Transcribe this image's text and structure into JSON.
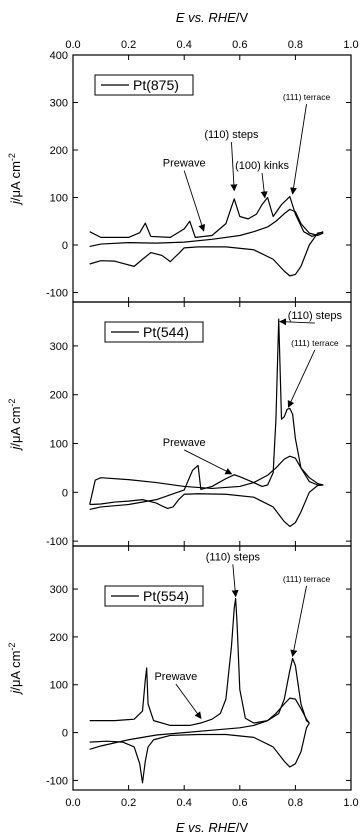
{
  "chart_data": {
    "type": "line",
    "x_axis": {
      "label_parts": [
        "E vs. RHE",
        "/V"
      ],
      "ticks": [
        "0.0",
        "0.2",
        "0.4",
        "0.6",
        "0.8",
        "1.0"
      ],
      "xlim": [
        0.0,
        1.0
      ],
      "top_and_bottom": true
    },
    "y_axis_label": {
      "main": "j/μA cm",
      "sup": "-2"
    },
    "panels": [
      {
        "legend": "Pt(875)",
        "ylim": [
          -120,
          400
        ],
        "yticks": [
          "400",
          "300",
          "200",
          "100",
          "0",
          "-100"
        ],
        "annotations": [
          {
            "text": "Prewave",
            "size": "normal",
            "text_x": 0.4,
            "text_y": 165,
            "arrow_to": [
              0.47,
              30
            ]
          },
          {
            "text": "(110) steps",
            "size": "normal",
            "text_x": 0.57,
            "text_y": 225,
            "arrow_to": [
              0.58,
              115
            ]
          },
          {
            "text": "(100) kinks",
            "size": "normal",
            "text_x": 0.68,
            "text_y": 160,
            "arrow_to": [
              0.69,
              100
            ]
          },
          {
            "text": "(111) terrace",
            "size": "small",
            "text_x": 0.84,
            "text_y": 305,
            "arrow_to": [
              0.79,
              108
            ]
          }
        ],
        "series": [
          {
            "x": [
              0.06,
              0.1,
              0.2,
              0.24,
              0.26,
              0.28,
              0.35,
              0.4,
              0.42,
              0.44,
              0.5,
              0.55,
              0.57,
              0.58,
              0.6,
              0.63,
              0.66,
              0.68,
              0.7,
              0.72,
              0.75,
              0.78,
              0.8,
              0.83,
              0.86,
              0.9
            ],
            "y": [
              28,
              16,
              16,
              26,
              46,
              18,
              16,
              34,
              50,
              16,
              20,
              45,
              80,
              97,
              60,
              55,
              65,
              85,
              100,
              60,
              85,
              102,
              65,
              28,
              18,
              28
            ]
          },
          {
            "x": [
              0.9,
              0.88,
              0.85,
              0.82,
              0.8,
              0.78,
              0.76,
              0.72,
              0.65,
              0.55,
              0.45,
              0.4,
              0.38,
              0.35,
              0.32,
              0.28,
              0.25,
              0.22,
              0.15,
              0.1,
              0.06
            ],
            "y": [
              27,
              25,
              0,
              -45,
              -62,
              -65,
              -55,
              -30,
              -10,
              -4,
              -4,
              -6,
              -18,
              -35,
              -22,
              -16,
              -30,
              -45,
              -34,
              -33,
              -40
            ]
          },
          {
            "x": [
              0.06,
              0.1,
              0.2,
              0.3,
              0.4,
              0.5,
              0.6,
              0.65,
              0.7,
              0.73,
              0.76,
              0.78,
              0.8,
              0.82,
              0.85,
              0.88,
              0.9
            ],
            "y": [
              -3,
              2,
              5,
              4,
              6,
              12,
              20,
              28,
              38,
              50,
              66,
              75,
              70,
              45,
              25,
              20,
              25
            ]
          }
        ]
      },
      {
        "legend": "Pt(544)",
        "ylim": [
          -110,
          390
        ],
        "yticks": [
          "300",
          "200",
          "100",
          "0",
          "-100"
        ],
        "annotations": [
          {
            "text": "(110) steps",
            "size": "normal",
            "text_x": 0.87,
            "text_y": 355,
            "arrow_to": [
              0.745,
              350
            ]
          },
          {
            "text": "(111) terrace",
            "size": "small",
            "text_x": 0.87,
            "text_y": 300,
            "arrow_to": [
              0.775,
              175
            ]
          },
          {
            "text": "Prewave",
            "size": "normal",
            "text_x": 0.4,
            "text_y": 95,
            "arrow_to": [
              0.57,
              38
            ]
          }
        ],
        "series": [
          {
            "x": [
              0.06,
              0.1,
              0.2,
              0.3,
              0.4,
              0.43,
              0.45,
              0.46,
              0.5,
              0.55,
              0.58,
              0.6,
              0.65,
              0.68,
              0.7,
              0.72,
              0.73,
              0.74,
              0.75,
              0.76,
              0.77,
              0.78,
              0.79,
              0.8,
              0.82,
              0.85,
              0.88,
              0.9
            ],
            "y": [
              -35,
              -30,
              -25,
              -15,
              5,
              45,
              55,
              6,
              12,
              28,
              36,
              32,
              20,
              12,
              15,
              40,
              150,
              355,
              150,
              155,
              170,
              172,
              160,
              110,
              50,
              22,
              15,
              15
            ]
          },
          {
            "x": [
              0.9,
              0.88,
              0.85,
              0.82,
              0.8,
              0.78,
              0.76,
              0.72,
              0.65,
              0.55,
              0.45,
              0.4,
              0.38,
              0.36,
              0.34,
              0.32,
              0.3,
              0.25,
              0.2,
              0.15,
              0.1,
              0.06
            ],
            "y": [
              15,
              14,
              0,
              -40,
              -62,
              -70,
              -60,
              -30,
              -10,
              -4,
              -3,
              -4,
              -15,
              -30,
              -33,
              -28,
              -22,
              -15,
              -18,
              -20,
              -24,
              -25
            ]
          },
          {
            "x": [
              0.06,
              0.08,
              0.1,
              0.2,
              0.3,
              0.4,
              0.5,
              0.6,
              0.65,
              0.7,
              0.73,
              0.76,
              0.78,
              0.8,
              0.82,
              0.85,
              0.88,
              0.9
            ],
            "y": [
              -25,
              25,
              30,
              26,
              20,
              12,
              8,
              12,
              20,
              35,
              50,
              68,
              74,
              70,
              50,
              30,
              18,
              15
            ]
          }
        ]
      },
      {
        "legend": "Pt(554)",
        "ylim": [
          -120,
          390
        ],
        "yticks": [
          "300",
          "200",
          "100",
          "0",
          "-100"
        ],
        "annotations": [
          {
            "text": "(110) steps",
            "size": "normal",
            "text_x": 0.575,
            "text_y": 360,
            "arrow_to": [
              0.585,
              285
            ]
          },
          {
            "text": "(111) terrace",
            "size": "small",
            "text_x": 0.84,
            "text_y": 315,
            "arrow_to": [
              0.79,
              160
            ]
          },
          {
            "text": "Prewave",
            "size": "normal",
            "text_x": 0.37,
            "text_y": 110,
            "arrow_to": [
              0.46,
              30
            ]
          }
        ],
        "series": [
          {
            "x": [
              0.06,
              0.15,
              0.22,
              0.25,
              0.26,
              0.265,
              0.27,
              0.29,
              0.35,
              0.42,
              0.46,
              0.5,
              0.53,
              0.55,
              0.57,
              0.58,
              0.585,
              0.59,
              0.6,
              0.62,
              0.65,
              0.7,
              0.74,
              0.76,
              0.78,
              0.79,
              0.8,
              0.82,
              0.84,
              0.85
            ],
            "y": [
              25,
              25,
              28,
              45,
              110,
              135,
              60,
              25,
              15,
              15,
              20,
              28,
              40,
              70,
              180,
              260,
              280,
              230,
              90,
              30,
              20,
              25,
              40,
              70,
              130,
              155,
              140,
              60,
              25,
              20
            ]
          },
          {
            "x": [
              0.85,
              0.84,
              0.82,
              0.8,
              0.78,
              0.76,
              0.72,
              0.65,
              0.55,
              0.45,
              0.35,
              0.29,
              0.27,
              0.26,
              0.25,
              0.24,
              0.22,
              0.18,
              0.12,
              0.06
            ],
            "y": [
              20,
              10,
              -40,
              -65,
              -72,
              -60,
              -30,
              -10,
              -4,
              -4,
              -6,
              -15,
              -30,
              -60,
              -105,
              -65,
              -30,
              -20,
              -18,
              -20
            ]
          },
          {
            "x": [
              0.06,
              0.1,
              0.2,
              0.3,
              0.4,
              0.5,
              0.6,
              0.65,
              0.7,
              0.73,
              0.76,
              0.78,
              0.8,
              0.82,
              0.84,
              0.85
            ],
            "y": [
              -35,
              -28,
              -15,
              -5,
              0,
              5,
              10,
              15,
              25,
              40,
              60,
              72,
              70,
              50,
              28,
              20
            ]
          }
        ]
      }
    ]
  }
}
